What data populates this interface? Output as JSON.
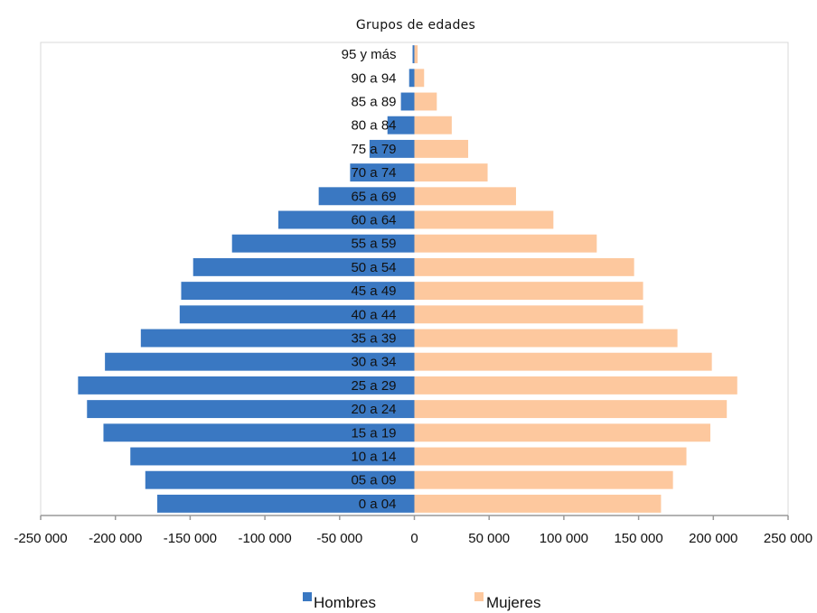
{
  "chart_data": {
    "type": "bar",
    "title": "Grupos de edades",
    "orientation": "horizontal",
    "categories": [
      "0 a 04",
      "05 a 09",
      "10 a 14",
      "15 a 19",
      "20 a 24",
      "25 a 29",
      "30 a 34",
      "35 a 39",
      "40 a 44",
      "45 a 49",
      "50 a 54",
      "55 a 59",
      "60 a 64",
      "65 a 69",
      "70 a 74",
      "75 a 79",
      "80 a 84",
      "85 a 89",
      "90 a 94",
      "95  y más"
    ],
    "series": [
      {
        "name": "Hombres",
        "color": "#3a78c2",
        "values": [
          -172000,
          -180000,
          -190000,
          -208000,
          -219000,
          -225000,
          -207000,
          -183000,
          -157000,
          -156000,
          -148000,
          -122000,
          -91000,
          -64000,
          -43000,
          -30000,
          -18000,
          -9000,
          -3500,
          -1200
        ]
      },
      {
        "name": "Mujeres",
        "color": "#fdc89e",
        "values": [
          165000,
          173000,
          182000,
          198000,
          209000,
          216000,
          199000,
          176000,
          153000,
          153000,
          147000,
          122000,
          93000,
          68000,
          49000,
          36000,
          25000,
          15000,
          6500,
          2200
        ]
      }
    ],
    "xlim": [
      -250000,
      250000
    ],
    "xticks": [
      -250000,
      -200000,
      -150000,
      -100000,
      -50000,
      0,
      50000,
      100000,
      150000,
      200000,
      250000
    ],
    "xtick_labels": [
      "-250 000",
      "-200 000",
      "-150 000",
      "-100 000",
      "-50 000",
      "0",
      "50 000",
      "100 000",
      "150 000",
      "200 000",
      "250 000"
    ],
    "legend_position": "bottom",
    "grid": false
  }
}
